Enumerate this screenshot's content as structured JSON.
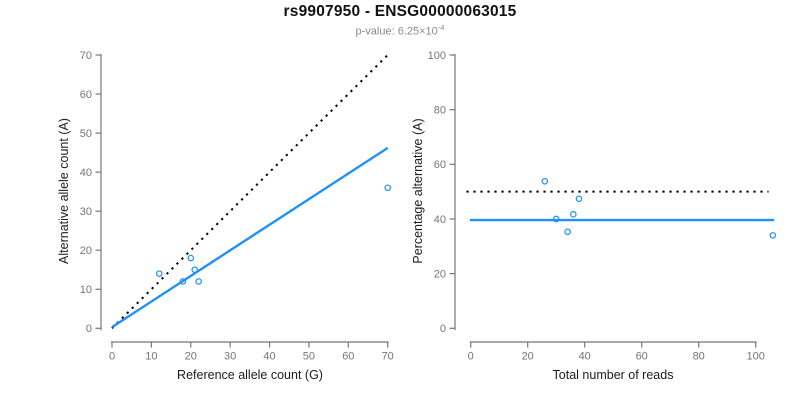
{
  "header": {
    "title": "rs9907950 - ENSG00000063015",
    "pvalue_prefix": "p-value: 6.25×10",
    "pvalue_exponent": "-4"
  },
  "colors": {
    "accent_blue": "#1E90FF",
    "dotted_black": "#000000",
    "axis_gray": "#777777",
    "tick_label_gray": "#757575"
  },
  "chart_data": [
    {
      "type": "scatter",
      "name": "allele-counts-plot",
      "xlabel": "Reference allele count (G)",
      "ylabel": "Alternative allele count (A)",
      "xlim": [
        0,
        70
      ],
      "ylim": [
        0,
        70
      ],
      "xticks": [
        0,
        10,
        20,
        30,
        40,
        50,
        60,
        70
      ],
      "yticks": [
        0,
        10,
        20,
        30,
        40,
        50,
        60,
        70
      ],
      "grid": false,
      "legend": "none",
      "points": [
        [
          12,
          14
        ],
        [
          20,
          18
        ],
        [
          21,
          15
        ],
        [
          18,
          12
        ],
        [
          22,
          12
        ],
        [
          70,
          36
        ]
      ],
      "lines": [
        {
          "role": "identity-line",
          "style": "dotted",
          "color": "#000000",
          "from": [
            0,
            0
          ],
          "to": [
            70,
            70
          ]
        },
        {
          "role": "fit-line",
          "style": "solid",
          "color": "#1E90FF",
          "from": [
            0,
            0.3
          ],
          "to": [
            70,
            46.2
          ]
        }
      ]
    },
    {
      "type": "scatter",
      "name": "percentage-alternative-plot",
      "xlabel": "Total number of reads",
      "ylabel": "Percentage alternative (A)",
      "xlim": [
        0,
        100
      ],
      "ylim": [
        0,
        100
      ],
      "xticks": [
        0,
        20,
        40,
        60,
        80,
        100
      ],
      "yticks": [
        0,
        20,
        40,
        60,
        80,
        100
      ],
      "grid": false,
      "legend": "none",
      "points": [
        [
          26,
          53.8
        ],
        [
          38,
          47.4
        ],
        [
          36,
          41.7
        ],
        [
          30,
          40.0
        ],
        [
          34,
          35.3
        ],
        [
          106,
          34.0
        ]
      ],
      "lines": [
        {
          "role": "expected-percentage-line",
          "style": "dotted",
          "color": "#000000",
          "from": [
            -1.5,
            50
          ],
          "to": [
            104.5,
            50
          ]
        },
        {
          "role": "observed-percentage-line",
          "style": "solid",
          "color": "#1E90FF",
          "from": [
            -0.3,
            39.6
          ],
          "to": [
            106.5,
            39.6
          ]
        }
      ]
    }
  ]
}
